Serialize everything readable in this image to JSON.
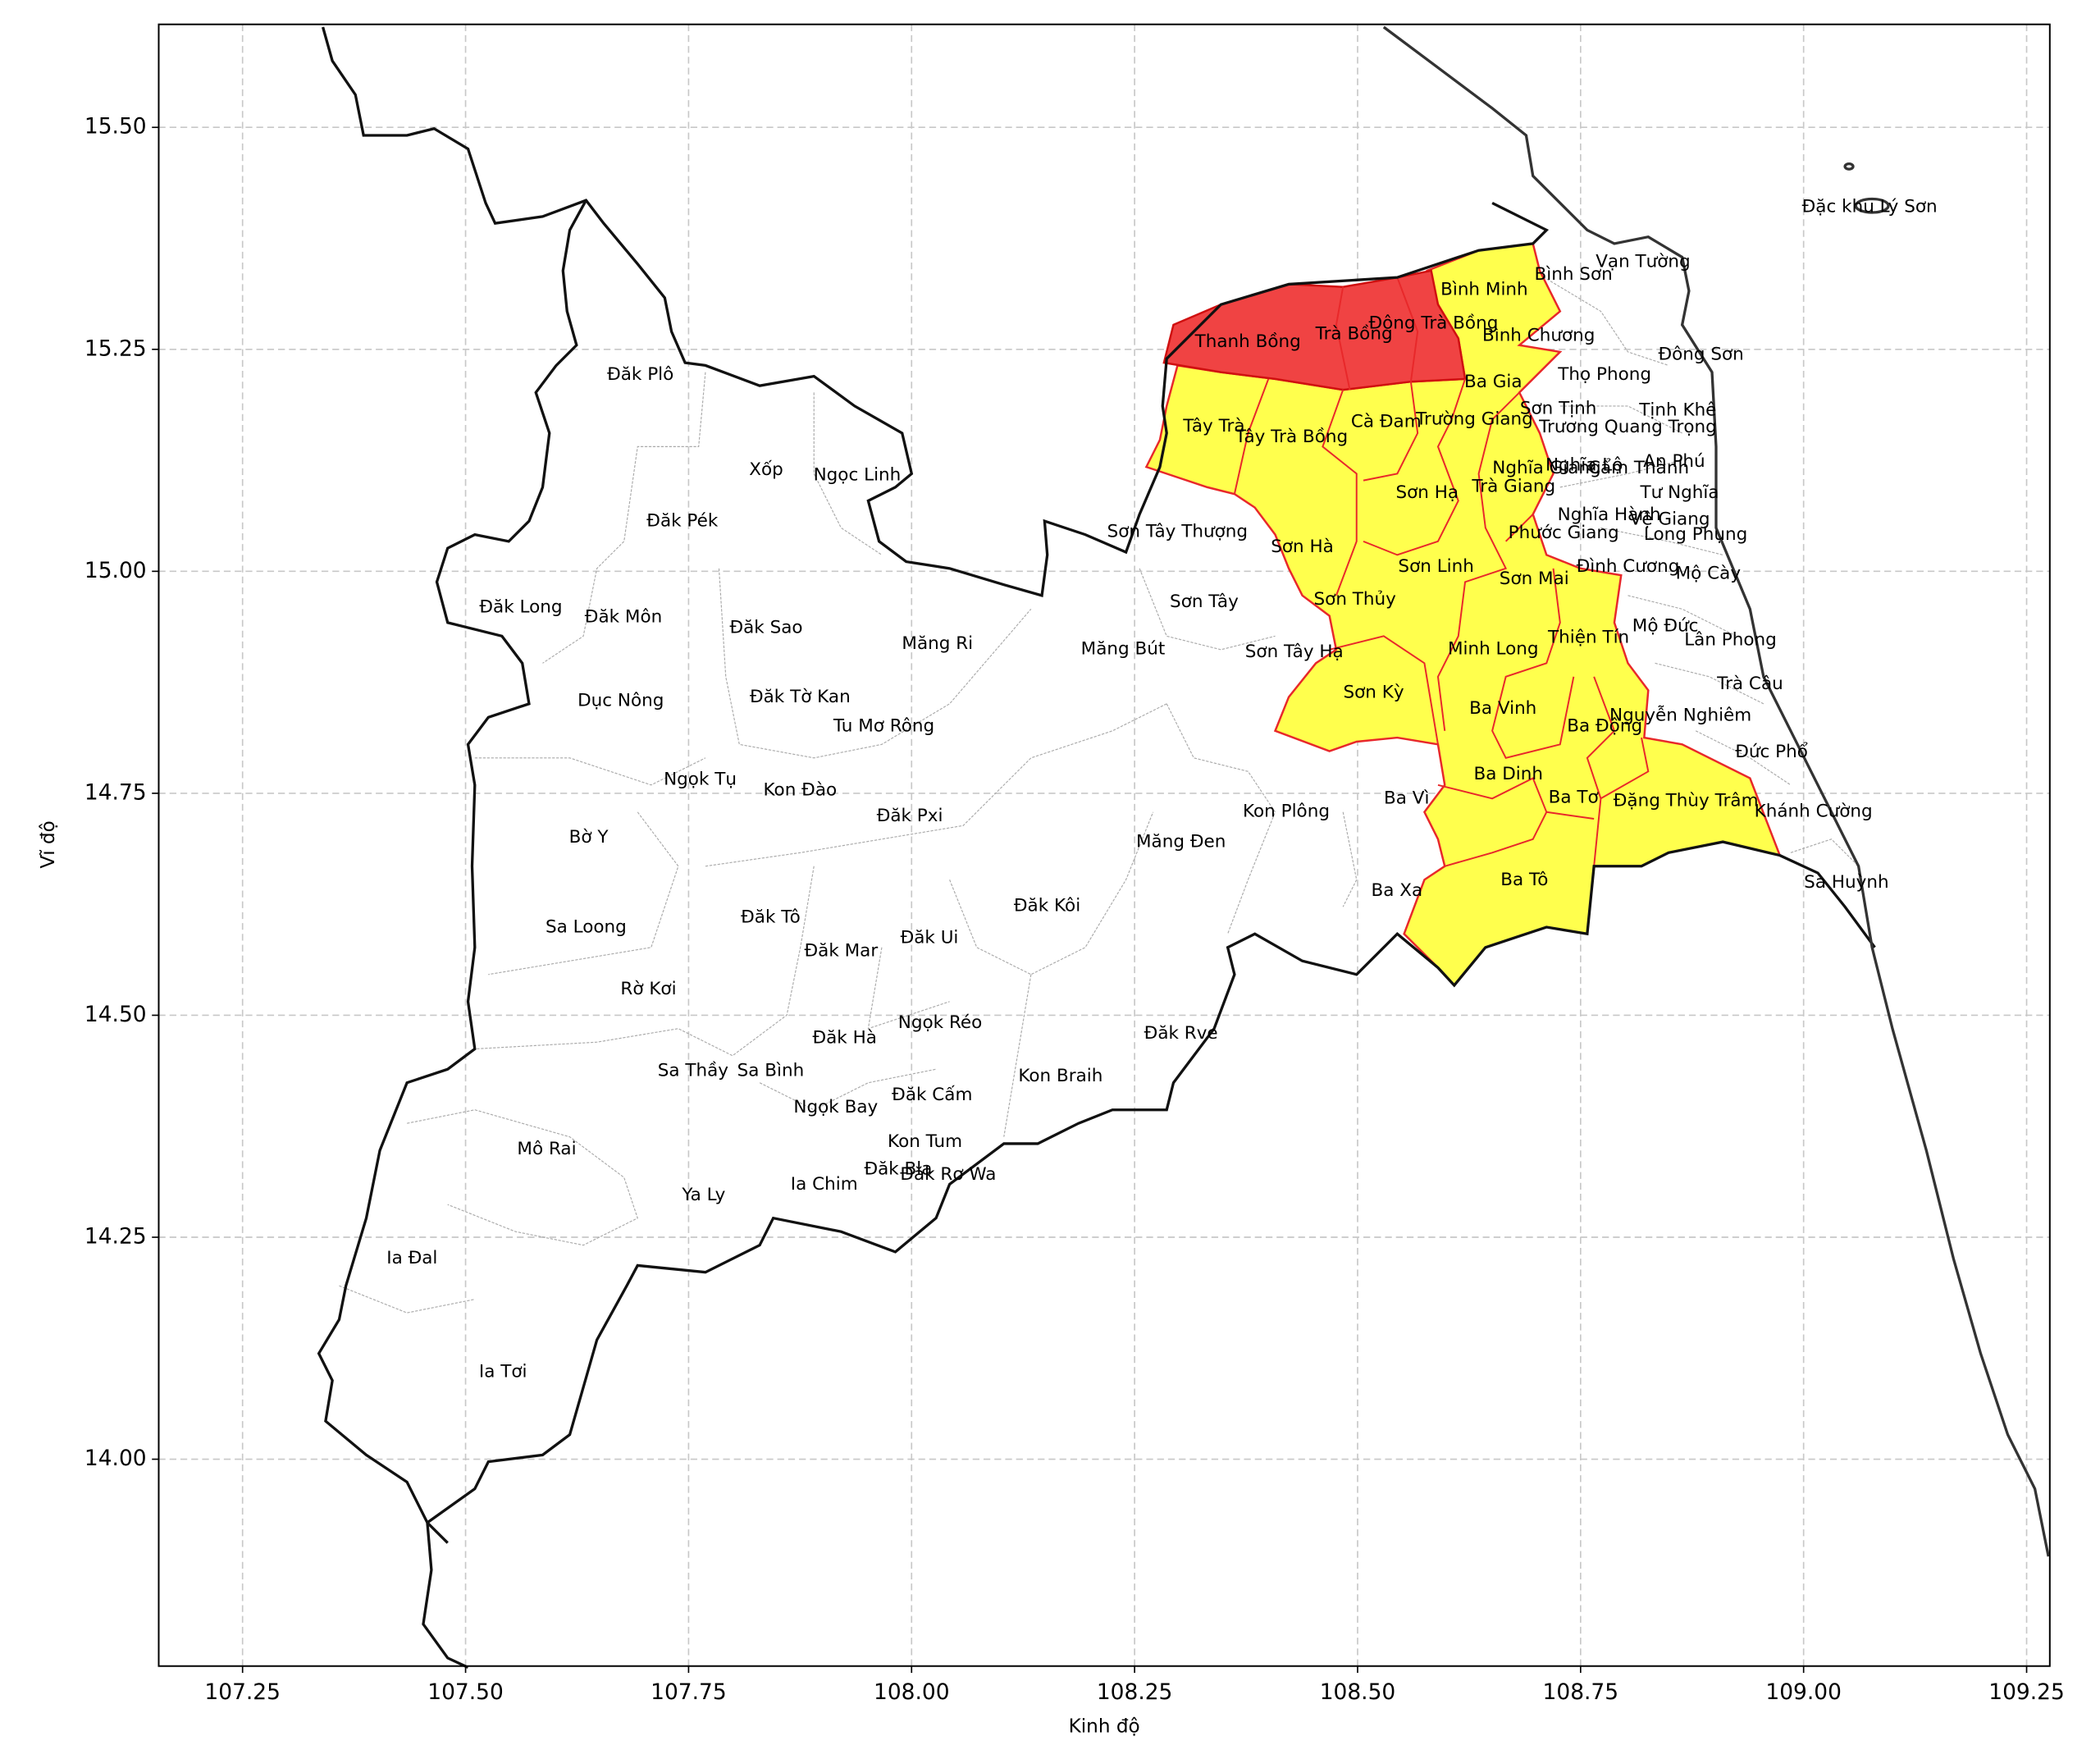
{
  "chart_data": {
    "type": "map",
    "xlabel": "Kinh độ",
    "ylabel": "Vĩ độ",
    "xlim": [
      107.156,
      109.276
    ],
    "ylim": [
      13.767,
      15.616
    ],
    "grid": true,
    "xticks": [
      {
        "value": 107.25,
        "label": "107.25"
      },
      {
        "value": 107.5,
        "label": "107.50"
      },
      {
        "value": 107.75,
        "label": "107.75"
      },
      {
        "value": 108.0,
        "label": "108.00"
      },
      {
        "value": 108.25,
        "label": "108.25"
      },
      {
        "value": 108.5,
        "label": "108.50"
      },
      {
        "value": 108.75,
        "label": "108.75"
      },
      {
        "value": 109.0,
        "label": "109.00"
      },
      {
        "value": 109.25,
        "label": "109.25"
      }
    ],
    "yticks": [
      {
        "value": 14.0,
        "label": "14.00"
      },
      {
        "value": 14.25,
        "label": "14.25"
      },
      {
        "value": 14.5,
        "label": "14.50"
      },
      {
        "value": 14.75,
        "label": "14.75"
      },
      {
        "value": 15.0,
        "label": "15.00"
      },
      {
        "value": 15.25,
        "label": "15.25"
      },
      {
        "value": 15.5,
        "label": "15.50"
      }
    ],
    "labels": [
      {
        "name": "Đặc khu Lý Sơn",
        "lon": 109.074,
        "lat": 15.41
      },
      {
        "name": "Vạn Tường",
        "lon": 108.82,
        "lat": 15.348
      },
      {
        "name": "Bình Sơn",
        "lon": 108.742,
        "lat": 15.334
      },
      {
        "name": "Bình Minh",
        "lon": 108.642,
        "lat": 15.317
      },
      {
        "name": "Thanh Bồng",
        "lon": 108.377,
        "lat": 15.258
      },
      {
        "name": "Trà Bồng",
        "lon": 108.496,
        "lat": 15.267
      },
      {
        "name": "Đông Trà Bồng",
        "lon": 108.585,
        "lat": 15.279
      },
      {
        "name": "Bình Chương",
        "lon": 108.703,
        "lat": 15.265
      },
      {
        "name": "Đông Sơn",
        "lon": 108.885,
        "lat": 15.244
      },
      {
        "name": "Thọ Phong",
        "lon": 108.777,
        "lat": 15.221
      },
      {
        "name": "Ba Gia",
        "lon": 108.652,
        "lat": 15.213
      },
      {
        "name": "Sơn Tịnh",
        "lon": 108.725,
        "lat": 15.183
      },
      {
        "name": "Tịnh Khê",
        "lon": 108.859,
        "lat": 15.181
      },
      {
        "name": "Tây Trà",
        "lon": 108.339,
        "lat": 15.163
      },
      {
        "name": "Tây Trà Bồng",
        "lon": 108.426,
        "lat": 15.151
      },
      {
        "name": "Cà Đam",
        "lon": 108.532,
        "lat": 15.168
      },
      {
        "name": "Trường Giang",
        "lon": 108.631,
        "lat": 15.171
      },
      {
        "name": "Trương Quang Trọng",
        "lon": 108.803,
        "lat": 15.162
      },
      {
        "name": "Nghĩa Giang",
        "lon": 108.712,
        "lat": 15.116
      },
      {
        "name": "Nghĩa Lộ",
        "lon": 108.754,
        "lat": 15.119
      },
      {
        "name": "Cẩm Thành",
        "lon": 108.815,
        "lat": 15.116
      },
      {
        "name": "An Phú",
        "lon": 108.855,
        "lat": 15.123
      },
      {
        "name": "Tư Nghĩa",
        "lon": 108.861,
        "lat": 15.088
      },
      {
        "name": "Sơn Hạ",
        "lon": 108.578,
        "lat": 15.088
      },
      {
        "name": "Trà Giang",
        "lon": 108.675,
        "lat": 15.095
      },
      {
        "name": "Nghĩa Hành",
        "lon": 108.782,
        "lat": 15.063
      },
      {
        "name": "Vệ Giang",
        "lon": 108.85,
        "lat": 15.058
      },
      {
        "name": "Sơn Tây Thượng",
        "lon": 108.298,
        "lat": 15.044
      },
      {
        "name": "Long Phụng",
        "lon": 108.879,
        "lat": 15.041
      },
      {
        "name": "Phước Giang",
        "lon": 108.731,
        "lat": 15.043
      },
      {
        "name": "Sơn Hà",
        "lon": 108.438,
        "lat": 15.027
      },
      {
        "name": "Sơn Linh",
        "lon": 108.588,
        "lat": 15.005
      },
      {
        "name": "Đình Cương",
        "lon": 108.803,
        "lat": 15.005
      },
      {
        "name": "Mộ Cày",
        "lon": 108.893,
        "lat": 14.997
      },
      {
        "name": "Sơn Mai",
        "lon": 108.698,
        "lat": 14.991
      },
      {
        "name": "Sơn Tây",
        "lon": 108.328,
        "lat": 14.965
      },
      {
        "name": "Sơn Thủy",
        "lon": 108.497,
        "lat": 14.968
      },
      {
        "name": "Mộ Đức",
        "lon": 108.845,
        "lat": 14.938
      },
      {
        "name": "Thiện Tín",
        "lon": 108.759,
        "lat": 14.925
      },
      {
        "name": "Lân Phong",
        "lon": 108.918,
        "lat": 14.922
      },
      {
        "name": "Minh Long",
        "lon": 108.652,
        "lat": 14.912
      },
      {
        "name": "Sơn Tây Hạ",
        "lon": 108.429,
        "lat": 14.909
      },
      {
        "name": "Măng Bút",
        "lon": 108.237,
        "lat": 14.912
      },
      {
        "name": "Măng Ri",
        "lon": 108.029,
        "lat": 14.918
      },
      {
        "name": "Trà Câu",
        "lon": 108.94,
        "lat": 14.873
      },
      {
        "name": "Sơn Kỳ",
        "lon": 108.518,
        "lat": 14.863
      },
      {
        "name": "Ba Vinh",
        "lon": 108.663,
        "lat": 14.845
      },
      {
        "name": "Nguyễn Nghiêm",
        "lon": 108.862,
        "lat": 14.837
      },
      {
        "name": "Ba Động",
        "lon": 108.777,
        "lat": 14.825
      },
      {
        "name": "Đức Phổ",
        "lon": 108.964,
        "lat": 14.796
      },
      {
        "name": "Ba Dinh",
        "lon": 108.669,
        "lat": 14.771
      },
      {
        "name": "Ba Tơ",
        "lon": 108.742,
        "lat": 14.745
      },
      {
        "name": "Đặng Thùy Trâm",
        "lon": 108.868,
        "lat": 14.741
      },
      {
        "name": "Khánh Cường",
        "lon": 109.011,
        "lat": 14.729
      },
      {
        "name": "Ba Vì",
        "lon": 108.555,
        "lat": 14.744
      },
      {
        "name": "Kon Plông",
        "lon": 108.42,
        "lat": 14.729
      },
      {
        "name": "Măng Đen",
        "lon": 108.302,
        "lat": 14.695
      },
      {
        "name": "Ba Tô",
        "lon": 108.687,
        "lat": 14.652
      },
      {
        "name": "Sa Huỳnh",
        "lon": 109.048,
        "lat": 14.649
      },
      {
        "name": "Ba Xa",
        "lon": 108.544,
        "lat": 14.64
      },
      {
        "name": "Đăk Plô",
        "lon": 107.696,
        "lat": 15.221
      },
      {
        "name": "Xốp",
        "lon": 107.837,
        "lat": 15.114
      },
      {
        "name": "Ngọc Linh",
        "lon": 107.939,
        "lat": 15.108
      },
      {
        "name": "Đăk Pék",
        "lon": 107.743,
        "lat": 15.056
      },
      {
        "name": "Đăk Long",
        "lon": 107.562,
        "lat": 14.959
      },
      {
        "name": "Đăk Môn",
        "lon": 107.677,
        "lat": 14.948
      },
      {
        "name": "Đăk Sao",
        "lon": 107.837,
        "lat": 14.936
      },
      {
        "name": "Dục Nông",
        "lon": 107.674,
        "lat": 14.854
      },
      {
        "name": "Đăk Tờ Kan",
        "lon": 107.875,
        "lat": 14.858
      },
      {
        "name": "Tu Mơ Rông",
        "lon": 107.969,
        "lat": 14.825
      },
      {
        "name": "Ngọk Tụ",
        "lon": 107.763,
        "lat": 14.765
      },
      {
        "name": "Kon Đào",
        "lon": 107.875,
        "lat": 14.753
      },
      {
        "name": "Đăk Pxi",
        "lon": 107.998,
        "lat": 14.724
      },
      {
        "name": "Bờ Y",
        "lon": 107.638,
        "lat": 14.7
      },
      {
        "name": "Sa Loong",
        "lon": 107.635,
        "lat": 14.599
      },
      {
        "name": "Đăk Tô",
        "lon": 107.842,
        "lat": 14.61
      },
      {
        "name": "Đăk Kôi",
        "lon": 108.152,
        "lat": 14.623
      },
      {
        "name": "Đăk Ui",
        "lon": 108.02,
        "lat": 14.587
      },
      {
        "name": "Đăk Mar",
        "lon": 107.921,
        "lat": 14.572
      },
      {
        "name": "Rờ Kơi",
        "lon": 107.705,
        "lat": 14.529
      },
      {
        "name": "Ngọk Réo",
        "lon": 108.032,
        "lat": 14.491
      },
      {
        "name": "Đăk Hà",
        "lon": 107.925,
        "lat": 14.474
      },
      {
        "name": "Đăk Rve",
        "lon": 108.302,
        "lat": 14.479
      },
      {
        "name": "Sa Thầy",
        "lon": 107.755,
        "lat": 14.437
      },
      {
        "name": "Sa Bình",
        "lon": 107.842,
        "lat": 14.437
      },
      {
        "name": "Kon Braih",
        "lon": 108.167,
        "lat": 14.431
      },
      {
        "name": "Đăk Cấm",
        "lon": 108.023,
        "lat": 14.41
      },
      {
        "name": "Ngọk Bay",
        "lon": 107.915,
        "lat": 14.396
      },
      {
        "name": "Kon Tum",
        "lon": 108.015,
        "lat": 14.357
      },
      {
        "name": "Mô Rai",
        "lon": 107.591,
        "lat": 14.349
      },
      {
        "name": "Đăk Bla",
        "lon": 107.985,
        "lat": 14.326
      },
      {
        "name": "Đăk Rơ Wa",
        "lon": 108.041,
        "lat": 14.32
      },
      {
        "name": "Ia Chim",
        "lon": 107.902,
        "lat": 14.309
      },
      {
        "name": "Ya Ly",
        "lon": 107.767,
        "lat": 14.297
      },
      {
        "name": "Ia Đal",
        "lon": 107.44,
        "lat": 14.226
      },
      {
        "name": "Ia Tơi",
        "lon": 107.542,
        "lat": 14.098
      }
    ]
  }
}
